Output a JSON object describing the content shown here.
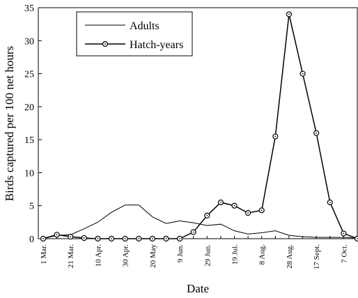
{
  "chart_data": {
    "type": "line",
    "xlabel": "Date",
    "ylabel": "Birds captured per 100 net hours",
    "categories": [
      "1 Mar.",
      null,
      "21 Mar.",
      null,
      "10 Apr.",
      null,
      "30 Apr.",
      null,
      "20 May",
      null,
      "9 Jun.",
      null,
      "29 Jun.",
      null,
      "19 Jul.",
      null,
      "8 Aug.",
      null,
      "28 Aug.",
      null,
      "17 Sept.",
      null,
      "7 Oct.",
      null
    ],
    "series": [
      {
        "name": "Adults",
        "color": "#000000",
        "marker": "none",
        "values": [
          0,
          0.5,
          0.6,
          1.5,
          2.5,
          4,
          5.1,
          5.1,
          3.3,
          2.3,
          2.7,
          2.4,
          2,
          2.2,
          1.2,
          0.7,
          0.9,
          1.2,
          0.5,
          0.3,
          0.2,
          0.2,
          0.2,
          0.1
        ]
      },
      {
        "name": "Hatch-years",
        "color": "#000000",
        "marker": "circle",
        "values": [
          0,
          0.6,
          0.3,
          0.1,
          0,
          0,
          0,
          0,
          0,
          0,
          0,
          1,
          3.5,
          5.5,
          5,
          3.9,
          4.3,
          15.5,
          34,
          25,
          16,
          5.5,
          0.8,
          0
        ]
      }
    ],
    "ylim": [
      0,
      35
    ],
    "yticks": [
      0,
      5,
      10,
      15,
      20,
      25,
      30,
      35
    ],
    "grid": false,
    "legend": "upper left"
  }
}
